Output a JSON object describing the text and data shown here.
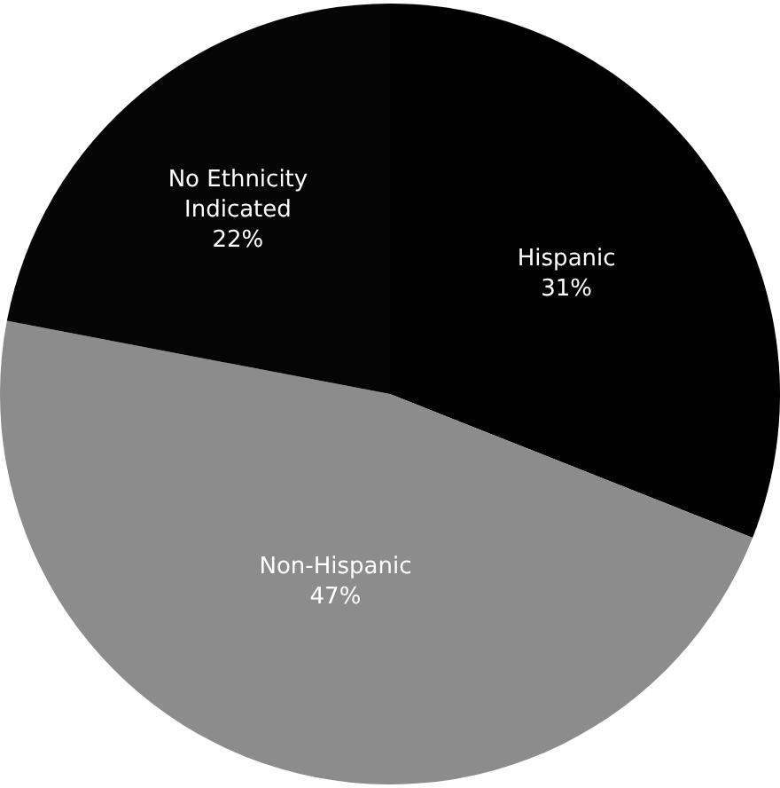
{
  "chart_data": {
    "type": "pie",
    "categories": [
      "Hispanic",
      "Non-Hispanic",
      "No Ethnicity Indicated"
    ],
    "values": [
      31,
      47,
      22
    ],
    "value_labels": [
      "31%",
      "47%",
      "22%"
    ],
    "colors": [
      "#000000",
      "#8c8c8c",
      "#050505"
    ],
    "legend": false
  }
}
